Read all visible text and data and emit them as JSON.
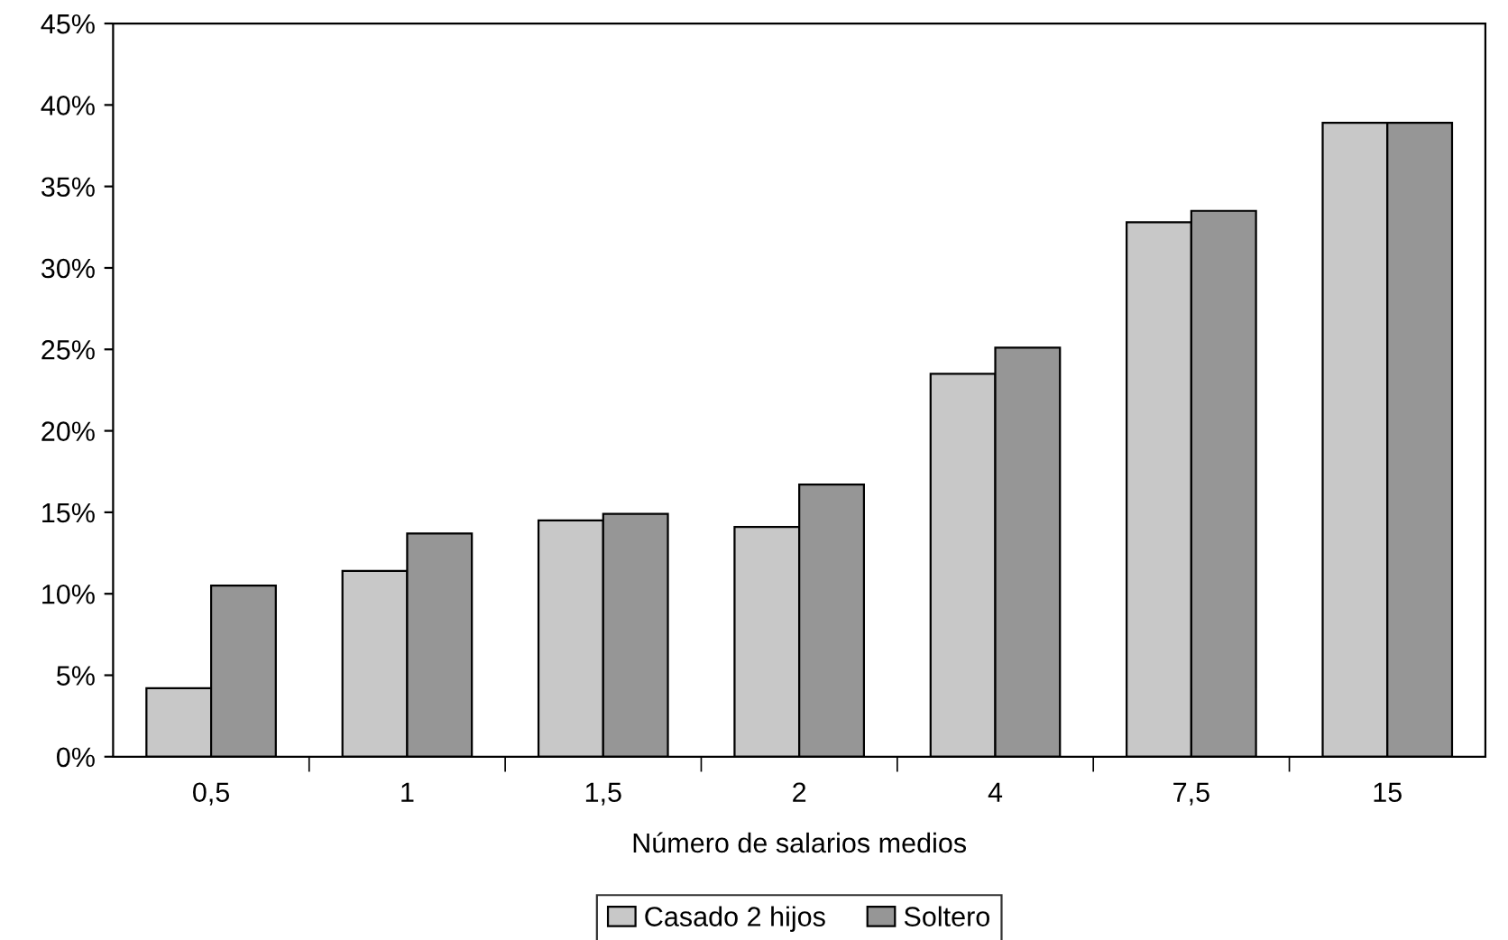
{
  "chart_data": {
    "type": "bar",
    "xlabel": "Número de salarios medios",
    "categories": [
      "0,5",
      "1",
      "1,5",
      "2",
      "4",
      "7,5",
      "15"
    ],
    "series": [
      {
        "name": "Casado 2 hijos",
        "color": "#c8c8c8",
        "values": [
          4.2,
          11.4,
          14.5,
          14.1,
          23.5,
          32.8,
          38.9
        ]
      },
      {
        "name": "Soltero",
        "color": "#969696",
        "values": [
          10.5,
          13.7,
          14.9,
          16.7,
          25.1,
          33.5,
          38.9
        ]
      }
    ],
    "ylim": [
      0,
      45
    ],
    "yticks": [
      {
        "value": 0,
        "label": "0%"
      },
      {
        "value": 5,
        "label": "5%"
      },
      {
        "value": 10,
        "label": "10%"
      },
      {
        "value": 15,
        "label": "15%"
      },
      {
        "value": 20,
        "label": "20%"
      },
      {
        "value": 25,
        "label": "25%"
      },
      {
        "value": 30,
        "label": "30%"
      },
      {
        "value": 35,
        "label": "35%"
      },
      {
        "value": 40,
        "label": "40%"
      },
      {
        "value": 45,
        "label": "45%"
      }
    ],
    "grid": false,
    "legend": "bottom"
  }
}
